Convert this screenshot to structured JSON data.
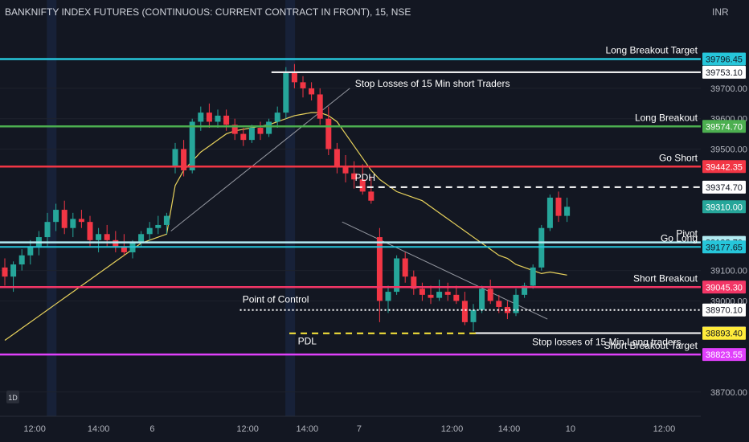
{
  "chart_data": {
    "type": "candlestick",
    "title": "BANKNIFTY INDEX FUTURES (CONTINUOUS: CURRENT CONTRACT IN FRONT), 15, NSE",
    "currency": "INR",
    "interval_badge": "1D",
    "ylim": [
      38620,
      39885
    ],
    "y_ticks": [
      38700,
      39000,
      39100,
      39500,
      39600,
      39700
    ],
    "y_tick_labels": [
      "38700.00",
      "39000.00",
      "39100.00",
      "39500.00",
      "39600.00",
      "39700.00"
    ],
    "x_ticks": [
      "12:00",
      "14:00",
      "6",
      "12:00",
      "14:00",
      "7",
      "12:00",
      "14:00",
      "10",
      "12:00"
    ],
    "session_breaks": [
      5.5,
      33.5
    ],
    "candles": [
      [
        39110,
        39140,
        39050,
        39080
      ],
      [
        39080,
        39130,
        39030,
        39120
      ],
      [
        39120,
        39170,
        39100,
        39150
      ],
      [
        39150,
        39200,
        39120,
        39180
      ],
      [
        39180,
        39230,
        39150,
        39210
      ],
      [
        39210,
        39290,
        39180,
        39260
      ],
      [
        39260,
        39320,
        39230,
        39300
      ],
      [
        39300,
        39330,
        39220,
        39240
      ],
      [
        39240,
        39290,
        39210,
        39270
      ],
      [
        39270,
        39300,
        39240,
        39260
      ],
      [
        39260,
        39280,
        39180,
        39200
      ],
      [
        39200,
        39240,
        39160,
        39220
      ],
      [
        39220,
        39250,
        39180,
        39200
      ],
      [
        39200,
        39230,
        39160,
        39180
      ],
      [
        39180,
        39220,
        39150,
        39160
      ],
      [
        39160,
        39200,
        39140,
        39190
      ],
      [
        39190,
        39230,
        39180,
        39220
      ],
      [
        39220,
        39260,
        39200,
        39240
      ],
      [
        39240,
        39280,
        39220,
        39250
      ],
      [
        39250,
        39290,
        39220,
        39280
      ],
      [
        39440,
        39520,
        39420,
        39500
      ],
      [
        39500,
        39530,
        39410,
        39430
      ],
      [
        39430,
        39600,
        39420,
        39590
      ],
      [
        39590,
        39640,
        39560,
        39620
      ],
      [
        39620,
        39650,
        39570,
        39590
      ],
      [
        39590,
        39630,
        39570,
        39610
      ],
      [
        39610,
        39630,
        39560,
        39580
      ],
      [
        39580,
        39600,
        39530,
        39550
      ],
      [
        39550,
        39570,
        39510,
        39530
      ],
      [
        39530,
        39580,
        39520,
        39570
      ],
      [
        39570,
        39590,
        39530,
        39550
      ],
      [
        39550,
        39600,
        39540,
        39590
      ],
      [
        39590,
        39640,
        39570,
        39620
      ],
      [
        39620,
        39770,
        39600,
        39750
      ],
      [
        39750,
        39780,
        39700,
        39720
      ],
      [
        39720,
        39740,
        39670,
        39700
      ],
      [
        39700,
        39720,
        39660,
        39680
      ],
      [
        39680,
        39700,
        39580,
        39600
      ],
      [
        39600,
        39640,
        39480,
        39500
      ],
      [
        39500,
        39520,
        39420,
        39440
      ],
      [
        39440,
        39480,
        39390,
        39420
      ],
      [
        39420,
        39460,
        39370,
        39400
      ],
      [
        39400,
        39450,
        39350,
        39360
      ],
      [
        39360,
        39410,
        39320,
        39330
      ],
      [
        39210,
        39240,
        38930,
        39000
      ],
      [
        39000,
        39050,
        38960,
        39030
      ],
      [
        39030,
        39150,
        39020,
        39140
      ],
      [
        39140,
        39160,
        39060,
        39080
      ],
      [
        39080,
        39100,
        39020,
        39040
      ],
      [
        39040,
        39060,
        39000,
        39020
      ],
      [
        39020,
        39050,
        38990,
        39010
      ],
      [
        39010,
        39070,
        39000,
        39030
      ],
      [
        39030,
        39060,
        39000,
        39020
      ],
      [
        39020,
        39050,
        38990,
        39000
      ],
      [
        39000,
        39030,
        38920,
        38930
      ],
      [
        38930,
        38990,
        38900,
        38970
      ],
      [
        38970,
        39050,
        38960,
        39040
      ],
      [
        39040,
        39070,
        38990,
        39000
      ],
      [
        39000,
        39020,
        38960,
        38980
      ],
      [
        38980,
        39000,
        38940,
        38960
      ],
      [
        38960,
        39040,
        38950,
        39020
      ],
      [
        39020,
        39060,
        39010,
        39050
      ],
      [
        39050,
        39120,
        39040,
        39110
      ],
      [
        39110,
        39250,
        39100,
        39240
      ],
      [
        39240,
        39350,
        39230,
        39340
      ],
      [
        39340,
        39360,
        39260,
        39280
      ],
      [
        39280,
        39340,
        39260,
        39310
      ]
    ],
    "moving_average": [
      38870,
      38890,
      38910,
      38930,
      38950,
      38970,
      38990,
      39010,
      39030,
      39050,
      39070,
      39090,
      39110,
      39130,
      39150,
      39170,
      39190,
      39200,
      39210,
      39220,
      39380,
      39430,
      39460,
      39490,
      39510,
      39530,
      39550,
      39560,
      39565,
      39570,
      39575,
      39580,
      39590,
      39600,
      39610,
      39615,
      39620,
      39620,
      39610,
      39590,
      39550,
      39510,
      39470,
      39430,
      39400,
      39380,
      39360,
      39350,
      39340,
      39330,
      39310,
      39290,
      39270,
      39250,
      39230,
      39210,
      39190,
      39170,
      39150,
      39140,
      39120,
      39110,
      39100,
      39090,
      39095,
      39090,
      39085
    ],
    "levels": [
      {
        "value": 39796.45,
        "label": "Long Breakout Target",
        "color": "#26c6da",
        "text_color": "#131722",
        "style": "solid",
        "width": 2.5
      },
      {
        "value": 39753.1,
        "label": "39753.10",
        "color": "#ffffff",
        "text_color": "#131722",
        "style": "solid",
        "width": 2
      },
      {
        "value": 39574.7,
        "label": "Long Breakout",
        "color": "#4caf50",
        "text_color": "#ffffff",
        "style": "solid",
        "width": 2.5
      },
      {
        "value": 39442.35,
        "label": "Go Short",
        "color": "#f23645",
        "text_color": "#ffffff",
        "style": "solid",
        "width": 2.5
      },
      {
        "value": 39374.7,
        "label": "39374.70",
        "color": "#ffffff",
        "text_color": "#131722",
        "style": "dashed",
        "width": 2
      },
      {
        "value": 39310.0,
        "label": "39310.00",
        "color": "#26a69a",
        "text_color": "#ffffff",
        "style": "none",
        "width": 0
      },
      {
        "value": 39192.7,
        "label": "Pivot",
        "color": "#b2ebf2",
        "text_color": "#131722",
        "style": "solid",
        "width": 2.5
      },
      {
        "value": 39177.65,
        "label": "Go Long",
        "color": "#26c6da",
        "text_color": "#131722",
        "style": "solid",
        "width": 2
      },
      {
        "value": 39045.3,
        "label": "Short Breakout",
        "color": "#f23666",
        "text_color": "#ffffff",
        "style": "solid",
        "width": 2.5
      },
      {
        "value": 38970.1,
        "label": "38970.10",
        "color": "#ffffff",
        "text_color": "#131722",
        "style": "dotted",
        "width": 2
      },
      {
        "value": 38894.05,
        "label": "38894.05",
        "color": "#ffffff",
        "text_color": "#131722",
        "style": "solid",
        "width": 2
      },
      {
        "value": 38893.4,
        "label": "38893.40",
        "color": "#ffeb3b",
        "text_color": "#131722",
        "style": "dashed",
        "width": 2
      },
      {
        "value": 38823.55,
        "label": "Short Breakout Target",
        "color": "#e040fb",
        "text_color": "#ffffff",
        "style": "solid",
        "width": 2.5
      }
    ],
    "level_tag_text": [
      "39796.45",
      "39753.10",
      "39574.70",
      "39442.35",
      "39374.70",
      "39310.00",
      "39192.70",
      "39177.65",
      "39045.30",
      "38970.10",
      "38894.05",
      "38893.40",
      "38823.55"
    ],
    "annotations": [
      "Stop Losses of 15 Min short Traders",
      "PDH",
      "Point of Control",
      "PDL",
      "Stop losses of 15 Min Long traders"
    ],
    "up_color": "#26a69a",
    "down_color": "#f23645",
    "ma_color": "#e8d25c"
  }
}
